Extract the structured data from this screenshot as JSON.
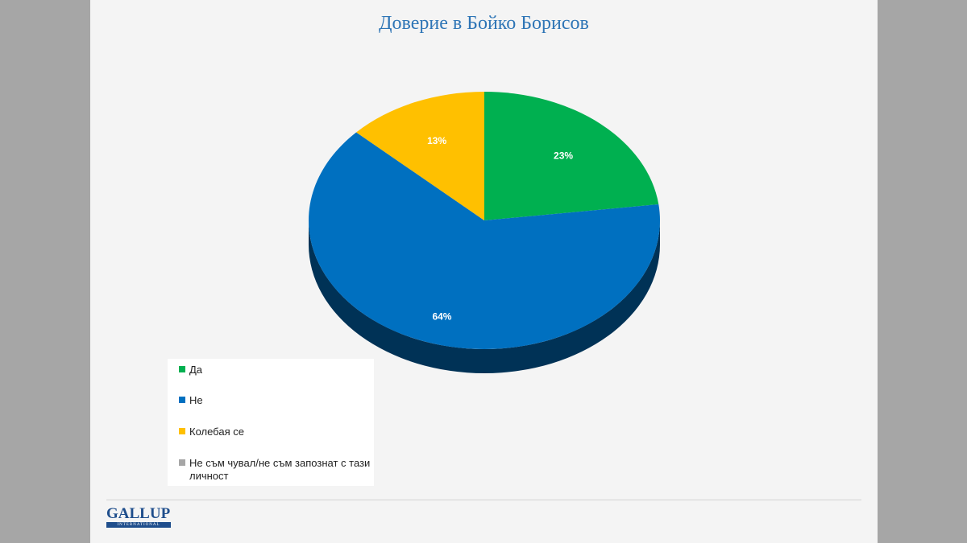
{
  "colors": {
    "green": "#00b050",
    "blue": "#0070c0",
    "yellow": "#ffc000",
    "gray": "#a6a6a6",
    "title": "#2e75b6"
  },
  "chart_data": {
    "type": "pie",
    "title": "Доверие в Бойко Борисов",
    "slices": [
      {
        "name": "Да",
        "value": 23,
        "label": "23%",
        "color": "#00b050"
      },
      {
        "name": "Не",
        "value": 64,
        "label": "64%",
        "color": "#0070c0"
      },
      {
        "name": "Колебая се",
        "value": 13,
        "label": "13%",
        "color": "#ffc000"
      },
      {
        "name": "Не съм чувал/не съм запознат с тази личност",
        "value": 0,
        "label": "",
        "color": "#a6a6a6"
      }
    ],
    "legend_position": "bottom-left"
  },
  "logo": {
    "word": "GALLUP",
    "sub": "INTERNATIONAL"
  }
}
